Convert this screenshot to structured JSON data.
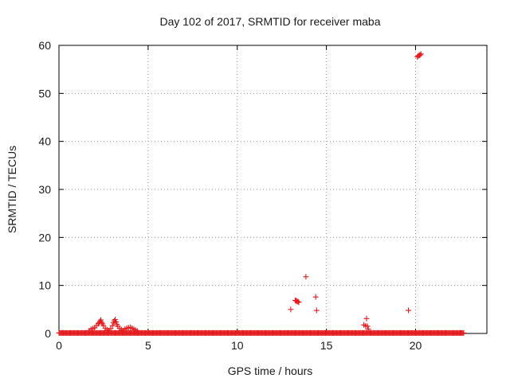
{
  "chart_data": {
    "type": "scatter",
    "title": "Day 102 of 2017, SRMTID for receiver maba",
    "xlabel": "GPS time / hours",
    "ylabel": "SRMTID / TECUs",
    "xlim": [
      0,
      24
    ],
    "ylim": [
      0,
      60
    ],
    "xticks": [
      0,
      5,
      10,
      15,
      20
    ],
    "yticks": [
      0,
      10,
      20,
      30,
      40,
      50,
      60
    ],
    "grid": true,
    "marker": "+",
    "color": "#e41a1c",
    "series": [
      {
        "name": "SRMTID",
        "baseline": {
          "x_start": 0.0,
          "x_end": 22.7,
          "step": 0.05,
          "y": 0.1
        },
        "points": [
          {
            "x": 1.7,
            "y": 0.6
          },
          {
            "x": 1.8,
            "y": 0.9
          },
          {
            "x": 1.9,
            "y": 1.0
          },
          {
            "x": 2.0,
            "y": 1.2
          },
          {
            "x": 2.1,
            "y": 1.6
          },
          {
            "x": 2.2,
            "y": 2.0
          },
          {
            "x": 2.25,
            "y": 2.2
          },
          {
            "x": 2.3,
            "y": 2.5
          },
          {
            "x": 2.35,
            "y": 2.8
          },
          {
            "x": 2.4,
            "y": 2.3
          },
          {
            "x": 2.45,
            "y": 2.0
          },
          {
            "x": 2.5,
            "y": 1.6
          },
          {
            "x": 2.6,
            "y": 1.1
          },
          {
            "x": 2.7,
            "y": 0.8
          },
          {
            "x": 2.8,
            "y": 0.6
          },
          {
            "x": 2.9,
            "y": 1.0
          },
          {
            "x": 3.0,
            "y": 1.6
          },
          {
            "x": 3.05,
            "y": 2.2
          },
          {
            "x": 3.1,
            "y": 2.6
          },
          {
            "x": 3.15,
            "y": 2.9
          },
          {
            "x": 3.2,
            "y": 2.4
          },
          {
            "x": 3.25,
            "y": 1.9
          },
          {
            "x": 3.3,
            "y": 1.5
          },
          {
            "x": 3.4,
            "y": 1.1
          },
          {
            "x": 3.5,
            "y": 0.8
          },
          {
            "x": 3.6,
            "y": 0.6
          },
          {
            "x": 3.7,
            "y": 0.9
          },
          {
            "x": 3.8,
            "y": 1.1
          },
          {
            "x": 3.9,
            "y": 1.2
          },
          {
            "x": 4.0,
            "y": 1.3
          },
          {
            "x": 4.1,
            "y": 1.1
          },
          {
            "x": 4.2,
            "y": 0.9
          },
          {
            "x": 4.3,
            "y": 0.7
          },
          {
            "x": 4.4,
            "y": 0.5
          },
          {
            "x": 13.0,
            "y": 5.0
          },
          {
            "x": 13.25,
            "y": 6.9
          },
          {
            "x": 13.3,
            "y": 6.8
          },
          {
            "x": 13.35,
            "y": 6.7
          },
          {
            "x": 13.4,
            "y": 6.6
          },
          {
            "x": 13.45,
            "y": 6.5
          },
          {
            "x": 13.85,
            "y": 11.8
          },
          {
            "x": 14.4,
            "y": 7.6
          },
          {
            "x": 14.45,
            "y": 4.8
          },
          {
            "x": 17.1,
            "y": 1.8
          },
          {
            "x": 17.2,
            "y": 1.6
          },
          {
            "x": 17.25,
            "y": 3.1
          },
          {
            "x": 17.3,
            "y": 1.5
          },
          {
            "x": 17.35,
            "y": 0.9
          },
          {
            "x": 19.6,
            "y": 4.8
          },
          {
            "x": 20.1,
            "y": 57.6
          },
          {
            "x": 20.15,
            "y": 57.8
          },
          {
            "x": 20.2,
            "y": 57.9
          },
          {
            "x": 20.25,
            "y": 58.0
          },
          {
            "x": 20.3,
            "y": 58.2
          }
        ]
      }
    ]
  }
}
